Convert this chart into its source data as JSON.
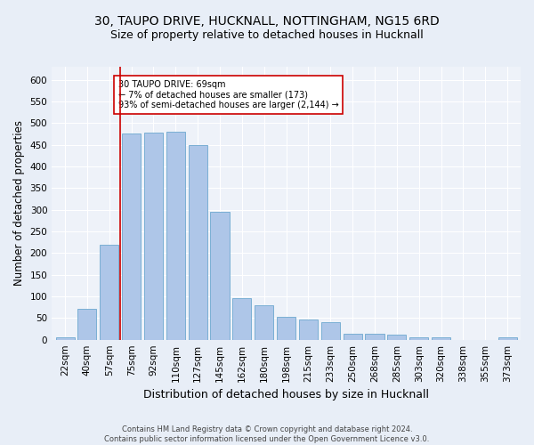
{
  "title1": "30, TAUPO DRIVE, HUCKNALL, NOTTINGHAM, NG15 6RD",
  "title2": "Size of property relative to detached houses in Hucknall",
  "xlabel": "Distribution of detached houses by size in Hucknall",
  "ylabel": "Number of detached properties",
  "footer1": "Contains HM Land Registry data © Crown copyright and database right 2024.",
  "footer2": "Contains public sector information licensed under the Open Government Licence v3.0.",
  "categories": [
    "22sqm",
    "40sqm",
    "57sqm",
    "75sqm",
    "92sqm",
    "110sqm",
    "127sqm",
    "145sqm",
    "162sqm",
    "180sqm",
    "198sqm",
    "215sqm",
    "233sqm",
    "250sqm",
    "268sqm",
    "285sqm",
    "303sqm",
    "320sqm",
    "338sqm",
    "355sqm",
    "373sqm"
  ],
  "values": [
    5,
    72,
    220,
    475,
    477,
    480,
    450,
    295,
    96,
    80,
    53,
    47,
    40,
    13,
    13,
    11,
    5,
    5,
    0,
    0,
    5
  ],
  "bar_color": "#aec6e8",
  "bar_edge_color": "#7aafd4",
  "vline_x_index": 3,
  "vline_color": "#cc0000",
  "annotation_text": "30 TAUPO DRIVE: 69sqm\n← 7% of detached houses are smaller (173)\n93% of semi-detached houses are larger (2,144) →",
  "annotation_box_color": "#ffffff",
  "annotation_box_edge": "#cc0000",
  "ylim": [
    0,
    630
  ],
  "yticks": [
    0,
    50,
    100,
    150,
    200,
    250,
    300,
    350,
    400,
    450,
    500,
    550,
    600
  ],
  "bg_color": "#e8eef7",
  "plot_bg_color": "#eef2f9",
  "grid_color": "#ffffff",
  "title1_fontsize": 10,
  "title2_fontsize": 9,
  "xlabel_fontsize": 9,
  "ylabel_fontsize": 8.5,
  "tick_fontsize": 7.5,
  "annotation_fontsize": 7,
  "footer_fontsize": 6
}
